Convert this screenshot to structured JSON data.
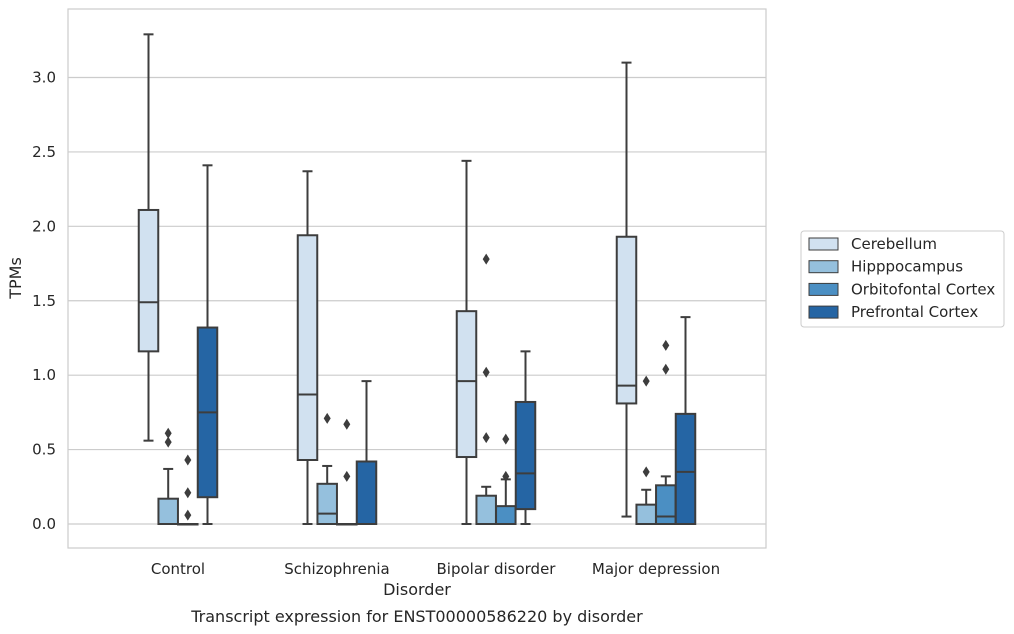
{
  "chart_data": {
    "type": "box",
    "title": "",
    "caption": "Transcript expression for ENST00000586220 by disorder",
    "xlabel": "Disorder",
    "ylabel": "TPMs",
    "ylim": [
      -0.16,
      3.46
    ],
    "yticks": [
      0.0,
      0.5,
      1.0,
      1.5,
      2.0,
      2.5,
      3.0
    ],
    "ytick_labels": [
      "0.0",
      "0.5",
      "1.0",
      "1.5",
      "2.0",
      "2.5",
      "3.0"
    ],
    "grid": "horizontal",
    "legend_position": "right",
    "categories": [
      "Control",
      "Schizophrenia",
      "Bipolar disorder",
      "Major depression"
    ],
    "series": [
      {
        "name": "Cerebellum",
        "color": "#d1e1f0",
        "boxes": [
          {
            "whisker_low": 0.56,
            "q1": 1.16,
            "median": 1.49,
            "q3": 2.11,
            "whisker_high": 3.29,
            "outliers": []
          },
          {
            "whisker_low": 0.0,
            "q1": 0.43,
            "median": 0.87,
            "q3": 1.94,
            "whisker_high": 2.37,
            "outliers": []
          },
          {
            "whisker_low": 0.0,
            "q1": 0.45,
            "median": 0.96,
            "q3": 1.43,
            "whisker_high": 2.44,
            "outliers": []
          },
          {
            "whisker_low": 0.05,
            "q1": 0.81,
            "median": 0.93,
            "q3": 1.93,
            "whisker_high": 3.1,
            "outliers": []
          }
        ]
      },
      {
        "name": "Hipppocampus",
        "color": "#95c0dd",
        "boxes": [
          {
            "whisker_low": 0.0,
            "q1": 0.0,
            "median": 0.0,
            "q3": 0.17,
            "whisker_high": 0.37,
            "outliers": [
              0.55,
              0.61
            ]
          },
          {
            "whisker_low": 0.0,
            "q1": 0.0,
            "median": 0.07,
            "q3": 0.27,
            "whisker_high": 0.39,
            "outliers": [
              0.71
            ]
          },
          {
            "whisker_low": 0.0,
            "q1": 0.0,
            "median": 0.0,
            "q3": 0.19,
            "whisker_high": 0.25,
            "outliers": [
              0.58,
              1.02,
              1.78
            ]
          },
          {
            "whisker_low": 0.0,
            "q1": 0.0,
            "median": 0.0,
            "q3": 0.13,
            "whisker_high": 0.23,
            "outliers": [
              0.35,
              0.96
            ]
          }
        ]
      },
      {
        "name": "Orbitofontal Cortex",
        "color": "#4b8fc3",
        "boxes": [
          {
            "whisker_low": 0.0,
            "q1": 0.0,
            "median": 0.0,
            "q3": 0.0,
            "whisker_high": 0.0,
            "outliers": [
              0.06,
              0.21,
              0.43
            ]
          },
          {
            "whisker_low": 0.0,
            "q1": 0.0,
            "median": 0.0,
            "q3": 0.0,
            "whisker_high": 0.0,
            "outliers": [
              0.32,
              0.67
            ]
          },
          {
            "whisker_low": 0.0,
            "q1": 0.0,
            "median": 0.0,
            "q3": 0.12,
            "whisker_high": 0.3,
            "outliers": [
              0.32,
              0.57
            ]
          },
          {
            "whisker_low": 0.0,
            "q1": 0.0,
            "median": 0.05,
            "q3": 0.26,
            "whisker_high": 0.32,
            "outliers": [
              1.04,
              1.2
            ]
          }
        ]
      },
      {
        "name": "Prefrontal Cortex",
        "color": "#2565a4",
        "boxes": [
          {
            "whisker_low": 0.0,
            "q1": 0.18,
            "median": 0.75,
            "q3": 1.32,
            "whisker_high": 2.41,
            "outliers": []
          },
          {
            "whisker_low": 0.0,
            "q1": 0.0,
            "median": 0.0,
            "q3": 0.42,
            "whisker_high": 0.96,
            "outliers": []
          },
          {
            "whisker_low": 0.0,
            "q1": 0.1,
            "median": 0.34,
            "q3": 0.82,
            "whisker_high": 1.16,
            "outliers": []
          },
          {
            "whisker_low": 0.0,
            "q1": 0.0,
            "median": 0.35,
            "q3": 0.74,
            "whisker_high": 1.39,
            "outliers": []
          }
        ]
      }
    ]
  }
}
